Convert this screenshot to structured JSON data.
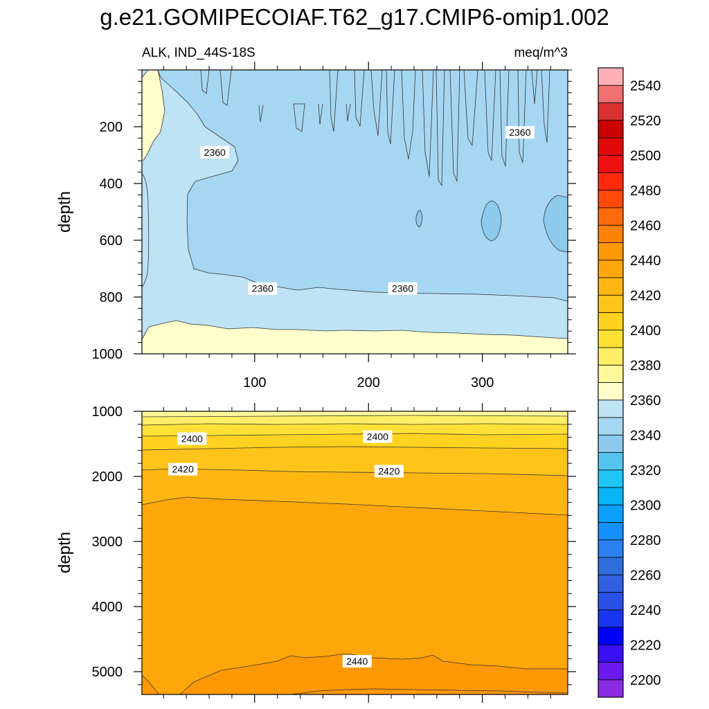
{
  "title": "g.e21.GOMIPECOIAF.T62_g17.CMIP6-omip1.002",
  "chart_data": {
    "type": "heatmap",
    "variable_label": "ALK, IND_44S-18S",
    "units": "meq/m^3",
    "x_range": [
      1,
      375
    ],
    "x_ticks": [
      100,
      200,
      300
    ],
    "colorbar": {
      "levels": [
        2200,
        2210,
        2220,
        2230,
        2240,
        2250,
        2260,
        2270,
        2280,
        2290,
        2300,
        2310,
        2320,
        2330,
        2340,
        2350,
        2360,
        2370,
        2380,
        2390,
        2400,
        2410,
        2420,
        2430,
        2440,
        2450,
        2460,
        2470,
        2480,
        2490,
        2500,
        2510,
        2520,
        2530,
        2540,
        2550
      ],
      "tick_labels": [
        "2200",
        "2220",
        "2240",
        "2260",
        "2280",
        "2300",
        "2320",
        "2340",
        "2360",
        "2380",
        "2400",
        "2420",
        "2440",
        "2460",
        "2480",
        "2500",
        "2520",
        "2540"
      ],
      "colors": [
        "#8A2BE2",
        "#6A1AF0",
        "#3A10F5",
        "#0000FF",
        "#1A35F0",
        "#2A50E8",
        "#3060E0",
        "#2E6EDD",
        "#2A80F0",
        "#1590FF",
        "#0AA0FF",
        "#05B5F5",
        "#20C5F8",
        "#55C5F0",
        "#8CCAEE",
        "#A6D7F2",
        "#BDE3F5",
        "#FFFFCC",
        "#FFF799",
        "#FFEE66",
        "#FFE135",
        "#FFD21F",
        "#FFC41A",
        "#FFB612",
        "#FFA70A",
        "#FF9805",
        "#FF8205",
        "#FF6A0A",
        "#FF4A0A",
        "#FF2A0A",
        "#F01010",
        "#E00A0A",
        "#CC0000",
        "#D93030",
        "#EE7070",
        "#FFB0B5"
      ]
    },
    "panels": [
      {
        "ylabel": "depth",
        "y_range": [
          0,
          1000
        ],
        "y_ticks": [
          200,
          400,
          600,
          800,
          1000
        ],
        "contour_labels": [
          {
            "text": "2360",
            "x": 65,
            "y": 290
          },
          {
            "text": "2360",
            "x": 107,
            "y": 770
          },
          {
            "text": "2360",
            "x": 230,
            "y": 770
          },
          {
            "text": "2360",
            "x": 333,
            "y": 220
          }
        ]
      },
      {
        "ylabel": "depth",
        "y_range": [
          1000,
          5350
        ],
        "y_ticks": [
          1000,
          2000,
          3000,
          4000,
          5000
        ],
        "contour_labels": [
          {
            "text": "2400",
            "x": 45,
            "y": 1420
          },
          {
            "text": "2400",
            "x": 208,
            "y": 1390
          },
          {
            "text": "2420",
            "x": 37,
            "y": 1890
          },
          {
            "text": "2420",
            "x": 218,
            "y": 1920
          },
          {
            "text": "2440",
            "x": 190,
            "y": 4840
          }
        ]
      }
    ]
  }
}
